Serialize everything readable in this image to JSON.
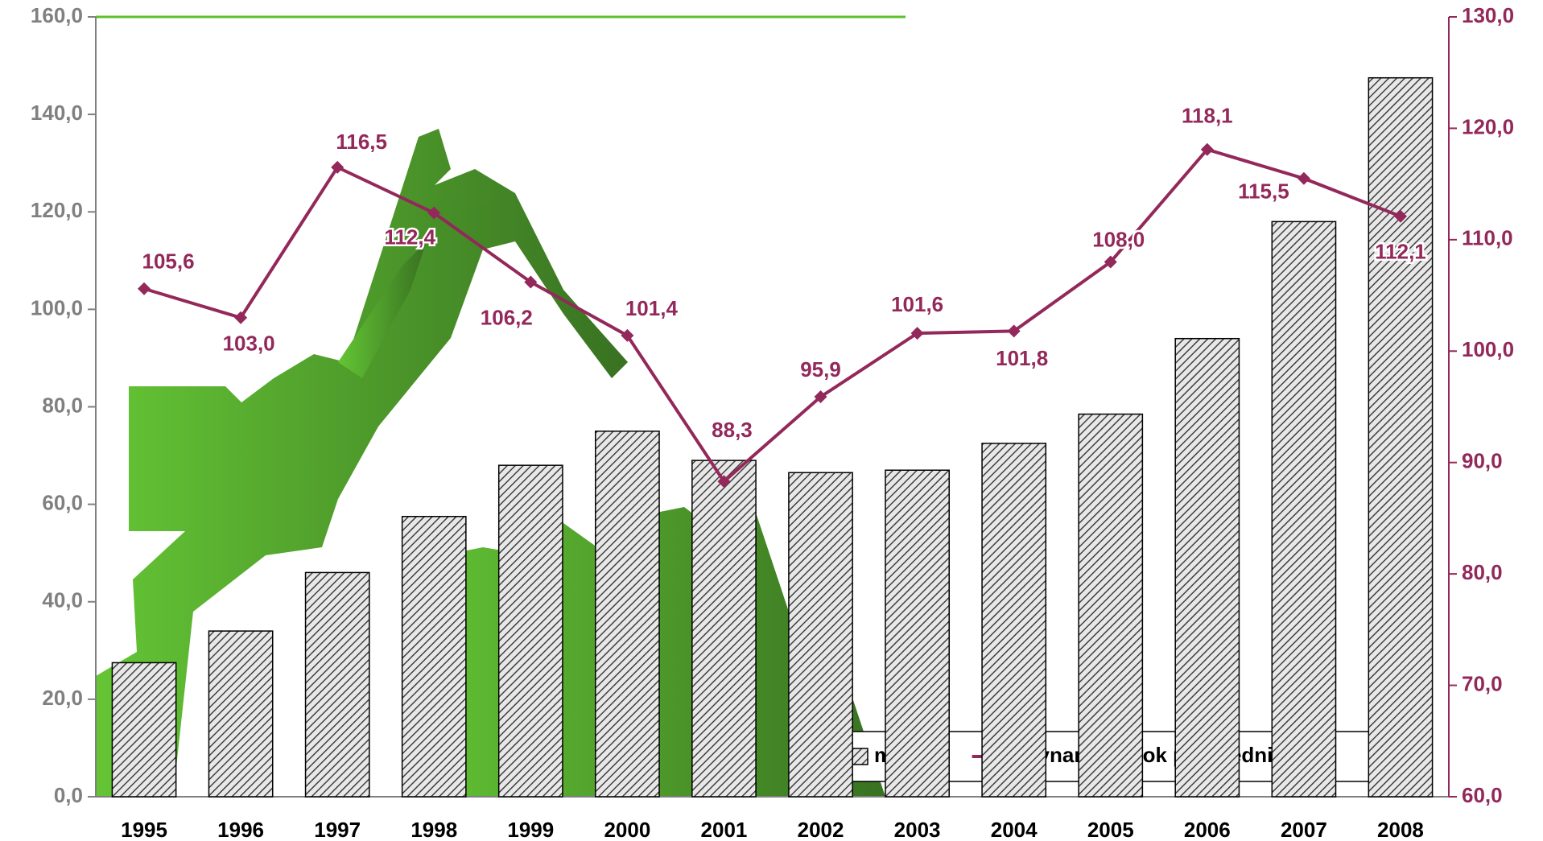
{
  "chart_data": {
    "type": "bar-line",
    "categories": [
      "1995",
      "1996",
      "1997",
      "1998",
      "1999",
      "2000",
      "2001",
      "2002",
      "2003",
      "2004",
      "2005",
      "2006",
      "2007",
      "2008"
    ],
    "series": [
      {
        "name": "mld zł",
        "type": "bar",
        "color": "#404040",
        "values": [
          27.5,
          34,
          46,
          57.5,
          68,
          75,
          69,
          66.5,
          67,
          72.5,
          78.5,
          94,
          118,
          147.5
        ]
      },
      {
        "name": "dynamika (rok poprzedni=100)",
        "type": "line",
        "axis": "y2",
        "color": "#93285a",
        "values": [
          105.6,
          103.0,
          116.5,
          112.4,
          106.2,
          101.4,
          88.3,
          95.9,
          101.6,
          101.8,
          108.0,
          118.1,
          115.5,
          112.1
        ],
        "value_labels": [
          "105,6",
          "103,0",
          "116,5",
          "112,4",
          "106,2",
          "101,4",
          "88,3",
          "95,9",
          "101,6",
          "101,8",
          "108,0",
          "118,1",
          "115,5",
          "112,1"
        ]
      }
    ],
    "ylim": [
      0,
      160
    ],
    "yticks": [
      {
        "value": 0,
        "label": "0,0"
      },
      {
        "value": 20,
        "label": "20,0"
      },
      {
        "value": 40,
        "label": "40,0"
      },
      {
        "value": 60,
        "label": "60,0"
      },
      {
        "value": 80,
        "label": "80,0"
      },
      {
        "value": 100,
        "label": "100,0"
      },
      {
        "value": 120,
        "label": "120,0"
      },
      {
        "value": 140,
        "label": "140,0"
      },
      {
        "value": 160,
        "label": "160,0"
      }
    ],
    "y2lim": [
      60,
      130
    ],
    "y2ticks": [
      {
        "value": 60,
        "label": "60,0"
      },
      {
        "value": 70,
        "label": "70,0"
      },
      {
        "value": 80,
        "label": "80,0"
      },
      {
        "value": 90,
        "label": "90,0"
      },
      {
        "value": 100,
        "label": "100,0"
      },
      {
        "value": 110,
        "label": "110,0"
      },
      {
        "value": 120,
        "label": "120,0"
      },
      {
        "value": 130,
        "label": "130,0"
      }
    ],
    "legend": "bottom-right"
  }
}
